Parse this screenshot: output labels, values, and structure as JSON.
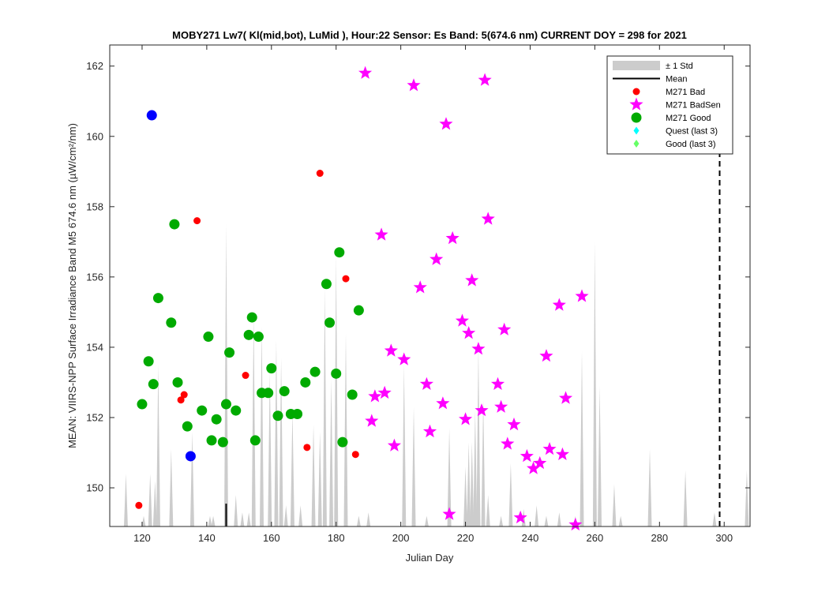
{
  "chart_data": {
    "type": "scatter",
    "title": "MOBY271   Lw7( Kl(mid,bot), LuMid ),   Hour:22 Sensor: Es Band: 5(674.6 nm)   CURRENT DOY = 298 for 2021",
    "xlabel": "Julian Day",
    "ylabel": "MEAN: VIIRS-NPP Surface Irradiance Band M5 674.6 nm (µW/cm²/nm)",
    "xlim": [
      110,
      308
    ],
    "ylim": [
      148.9,
      162.6
    ],
    "xticks": [
      120,
      140,
      160,
      180,
      200,
      220,
      240,
      260,
      280,
      300
    ],
    "yticks": [
      150,
      152,
      154,
      156,
      158,
      160,
      162
    ],
    "current_doy": 298.6,
    "grid": false,
    "legend_position": "top-right",
    "legend": [
      {
        "key": "std",
        "label": "± 1 Std"
      },
      {
        "key": "mean",
        "label": "Mean"
      },
      {
        "key": "bad",
        "label": "M271 Bad"
      },
      {
        "key": "badsen",
        "label": "M271 BadSen"
      },
      {
        "key": "good",
        "label": "M271 Good"
      },
      {
        "key": "quest",
        "label": "Quest (last 3)"
      },
      {
        "key": "good3",
        "label": "Good (last 3)"
      }
    ],
    "colors": {
      "std": "#cccccc",
      "mean": "#000000",
      "bad": "#ff0000",
      "badsen": "#ff00ff",
      "good": "#00aa00",
      "blue": "#0000ff",
      "quest": "#00ffff",
      "good3": "#66ff66"
    },
    "std_spikes": [
      [
        115,
        150.4
      ],
      [
        120.5,
        149.2
      ],
      [
        122.5,
        150.4
      ],
      [
        124,
        150.2
      ],
      [
        125,
        153.5
      ],
      [
        129,
        151.1
      ],
      [
        135.5,
        151.6
      ],
      [
        141,
        149.2
      ],
      [
        142,
        149.2
      ],
      [
        146,
        157.5
      ],
      [
        149,
        149.8
      ],
      [
        151,
        149.3
      ],
      [
        153,
        149.3
      ],
      [
        154.5,
        154.9
      ],
      [
        157,
        154.6
      ],
      [
        159.5,
        153.3
      ],
      [
        161.5,
        154.2
      ],
      [
        163,
        153.7
      ],
      [
        164.5,
        149.5
      ],
      [
        166.5,
        152.2
      ],
      [
        169,
        149.5
      ],
      [
        173,
        151.8
      ],
      [
        175,
        151.6
      ],
      [
        176.5,
        155.7
      ],
      [
        178.5,
        153.1
      ],
      [
        180,
        156.6
      ],
      [
        183,
        154.4
      ],
      [
        187,
        149.2
      ],
      [
        190,
        149.3
      ],
      [
        201,
        153.5
      ],
      [
        204,
        152.3
      ],
      [
        208,
        149.2
      ],
      [
        215,
        151.7
      ],
      [
        220,
        150.6
      ],
      [
        221,
        151.3
      ],
      [
        222,
        151.3
      ],
      [
        223,
        152.2
      ],
      [
        224,
        154.0
      ],
      [
        225.5,
        152.5
      ],
      [
        227,
        149.8
      ],
      [
        231,
        149.2
      ],
      [
        234,
        150.7
      ],
      [
        238,
        149.4
      ],
      [
        242,
        149.5
      ],
      [
        245,
        149.2
      ],
      [
        249,
        149.3
      ],
      [
        254,
        149.2
      ],
      [
        256,
        153.9
      ],
      [
        260,
        157.0
      ],
      [
        261.5,
        152.9
      ],
      [
        266,
        150.1
      ],
      [
        268,
        149.2
      ],
      [
        277,
        151.1
      ],
      [
        288,
        150.5
      ],
      [
        297,
        149.3
      ],
      [
        307,
        150.5
      ]
    ],
    "mean_spikes": [
      [
        146,
        149.55
      ]
    ],
    "series_good": [
      [
        120,
        152.38
      ],
      [
        122,
        153.6
      ],
      [
        123.5,
        152.95
      ],
      [
        125,
        155.4
      ],
      [
        129,
        154.7
      ],
      [
        130,
        157.5
      ],
      [
        131,
        153.0
      ],
      [
        134,
        151.75
      ],
      [
        138.5,
        152.2
      ],
      [
        140.5,
        154.3
      ],
      [
        141.5,
        151.35
      ],
      [
        143,
        151.95
      ],
      [
        145,
        151.3
      ],
      [
        146,
        152.38
      ],
      [
        147,
        153.85
      ],
      [
        149,
        152.2
      ],
      [
        153,
        154.35
      ],
      [
        154,
        154.85
      ],
      [
        155,
        151.35
      ],
      [
        156,
        154.3
      ],
      [
        157,
        152.7
      ],
      [
        159,
        152.7
      ],
      [
        160,
        153.4
      ],
      [
        162,
        152.05
      ],
      [
        164,
        152.75
      ],
      [
        166,
        152.1
      ],
      [
        168,
        152.1
      ],
      [
        170.5,
        153.0
      ],
      [
        173.5,
        153.3
      ],
      [
        177,
        155.8
      ],
      [
        178,
        154.7
      ],
      [
        180,
        153.25
      ],
      [
        181,
        156.7
      ],
      [
        182,
        151.3
      ],
      [
        185,
        152.65
      ],
      [
        187,
        155.05
      ]
    ],
    "series_blue": [
      [
        123,
        160.6
      ],
      [
        135,
        150.9
      ]
    ],
    "series_bad": [
      [
        119,
        149.5
      ],
      [
        132,
        152.5
      ],
      [
        133,
        152.65
      ],
      [
        137,
        157.6
      ],
      [
        152,
        153.2
      ],
      [
        171,
        151.15
      ],
      [
        175,
        158.95
      ],
      [
        183,
        155.95
      ],
      [
        186,
        150.95
      ]
    ],
    "series_badsen": [
      [
        189,
        161.8
      ],
      [
        191,
        151.9
      ],
      [
        192,
        152.6
      ],
      [
        194,
        157.2
      ],
      [
        195,
        152.7
      ],
      [
        197,
        153.9
      ],
      [
        198,
        151.2
      ],
      [
        201,
        153.65
      ],
      [
        204,
        161.45
      ],
      [
        206,
        155.7
      ],
      [
        208,
        152.95
      ],
      [
        209,
        151.6
      ],
      [
        211,
        156.5
      ],
      [
        213,
        152.4
      ],
      [
        214,
        160.35
      ],
      [
        215,
        149.25
      ],
      [
        216,
        157.1
      ],
      [
        219,
        154.75
      ],
      [
        220,
        151.95
      ],
      [
        221,
        154.4
      ],
      [
        222,
        155.9
      ],
      [
        224,
        153.95
      ],
      [
        225,
        152.2
      ],
      [
        226,
        161.6
      ],
      [
        227,
        157.65
      ],
      [
        230,
        152.95
      ],
      [
        231,
        152.3
      ],
      [
        232,
        154.5
      ],
      [
        233,
        151.25
      ],
      [
        235,
        151.8
      ],
      [
        237,
        149.15
      ],
      [
        239,
        150.9
      ],
      [
        241,
        150.55
      ],
      [
        243,
        150.7
      ],
      [
        245,
        153.75
      ],
      [
        246,
        151.1
      ],
      [
        249,
        155.2
      ],
      [
        250,
        150.95
      ],
      [
        251,
        152.55
      ],
      [
        254,
        148.95
      ],
      [
        256,
        155.45
      ]
    ]
  }
}
